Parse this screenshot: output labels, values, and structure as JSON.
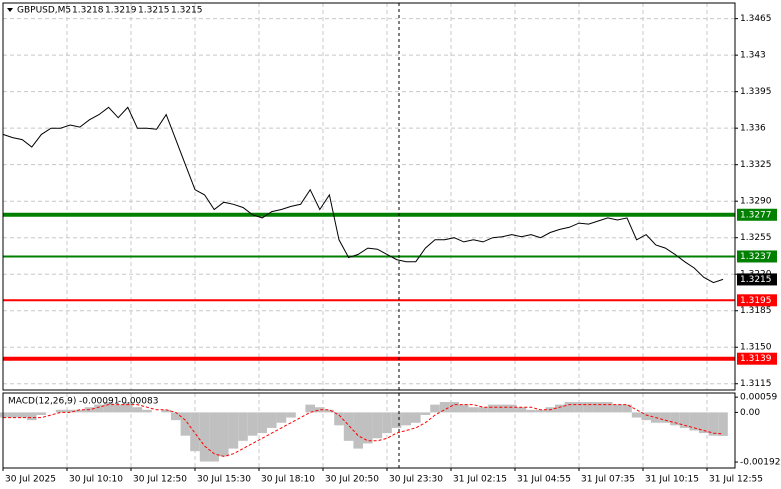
{
  "chart_data": {
    "type": "line",
    "title": "GBPUSD,M5",
    "quote": [
      1.3218,
      1.3219,
      1.3215,
      1.3215
    ],
    "color": "#000000",
    "values": [
      1.3354,
      1.3351,
      1.3349,
      1.3342,
      1.3354,
      1.336,
      1.336,
      1.3363,
      1.3361,
      1.3368,
      1.3373,
      1.338,
      1.337,
      1.338,
      1.336,
      1.336,
      1.3359,
      1.3373,
      1.3349,
      1.3325,
      1.3301,
      1.3296,
      1.3282,
      1.3289,
      1.3287,
      1.3284,
      1.3277,
      1.3274,
      1.328,
      1.3282,
      1.3285,
      1.3287,
      1.3301,
      1.3282,
      1.3296,
      1.3253,
      1.3236,
      1.3239,
      1.3245,
      1.3244,
      1.3239,
      1.3234,
      1.3232,
      1.3232,
      1.3245,
      1.3253,
      1.3253,
      1.3255,
      1.3251,
      1.3253,
      1.3251,
      1.3255,
      1.3256,
      1.3258,
      1.3256,
      1.3258,
      1.3255,
      1.326,
      1.3263,
      1.3265,
      1.3269,
      1.3268,
      1.3271,
      1.3274,
      1.3272,
      1.3274,
      1.3253,
      1.3258,
      1.3248,
      1.3245,
      1.3239,
      1.3232,
      1.3226,
      1.3217,
      1.3212,
      1.3215
    ],
    "xlabels": [
      "30 Jul 2025",
      "30 Jul 10:10",
      "30 Jul 12:50",
      "30 Jul 15:30",
      "30 Jul 18:10",
      "30 Jul 20:50",
      "30 Jul 23:30",
      "31 Jul 02:15",
      "31 Jul 04:55",
      "31 Jul 07:35",
      "31 Jul 10:15",
      "31 Jul 12:55"
    ],
    "ylim": [
      1.3109,
      1.348
    ],
    "yticks": [
      1.3465,
      1.343,
      1.3395,
      1.336,
      1.3325,
      {
        "value": 1.329,
        "label": "1.3290"
      },
      1.3255,
      {
        "value": 1.322,
        "label": "1.3220"
      },
      1.3185,
      {
        "value": 1.315,
        "label": "1.3150"
      },
      1.3115
    ],
    "grid": true,
    "levels": [
      {
        "value": 1.3277,
        "color": "#008000",
        "width": 4
      },
      {
        "value": 1.3237,
        "color": "#008000",
        "width": 2
      },
      {
        "value": 1.3195,
        "color": "#ff0000",
        "width": 2
      },
      {
        "value": 1.3139,
        "color": "#ff0000",
        "width": 4
      }
    ],
    "last_price": 1.3215,
    "macd": {
      "label": "MACD(12,26,9)",
      "macd_value": -0.00091,
      "signal_value": -0.00083,
      "hist_color": "#c0c0c0",
      "signal_color": "#ff0000",
      "histogram": [
        -0.0002,
        -0.0002,
        -0.0002,
        -0.0003,
        -0.0001,
        0.0,
        0.0001,
        0.0001,
        0.0001,
        0.0002,
        0.0003,
        0.0004,
        0.0003,
        0.0004,
        0.0002,
        0.0001,
        0.0,
        0.0001,
        -0.0003,
        -0.0009,
        -0.0015,
        -0.0019,
        -0.0019,
        -0.0017,
        -0.0014,
        -0.0011,
        -0.0009,
        -0.0008,
        -0.0006,
        -0.0004,
        -0.0002,
        0.0,
        0.0003,
        0.0002,
        0.0001,
        -0.0005,
        -0.0011,
        -0.0014,
        -0.0012,
        -0.001,
        -0.0008,
        -0.0006,
        -0.0005,
        -0.0004,
        -0.0001,
        0.0003,
        0.0004,
        0.0004,
        0.0003,
        0.0002,
        0.0002,
        0.0003,
        0.0003,
        0.0003,
        0.0002,
        0.0001,
        0.0001,
        0.0002,
        0.0003,
        0.0004,
        0.0004,
        0.0004,
        0.0004,
        0.0004,
        0.0003,
        0.0003,
        -0.0002,
        -0.0003,
        -0.0004,
        -0.0004,
        -0.0005,
        -0.0006,
        -0.0007,
        -0.0008,
        -0.0009,
        -0.00091
      ],
      "signal": [
        -0.0002,
        -0.0002,
        -0.0002,
        -0.0002,
        -0.0002,
        -0.0001,
        0.0,
        0.0,
        0.0001,
        0.0001,
        0.0002,
        0.0003,
        0.0003,
        0.0003,
        0.0003,
        0.0002,
        0.0001,
        0.0001,
        0.0,
        -0.0003,
        -0.0008,
        -0.0013,
        -0.0016,
        -0.0017,
        -0.0016,
        -0.0014,
        -0.0012,
        -0.001,
        -0.0008,
        -0.0006,
        -0.0004,
        -0.0002,
        0.0,
        0.0001,
        0.0001,
        -0.0001,
        -0.0005,
        -0.0009,
        -0.0011,
        -0.0011,
        -0.001,
        -0.0008,
        -0.0007,
        -0.0006,
        -0.0004,
        -0.0001,
        0.0001,
        0.0003,
        0.0003,
        0.0003,
        0.0002,
        0.0002,
        0.0002,
        0.0002,
        0.0002,
        0.0002,
        0.0001,
        0.0001,
        0.0002,
        0.0003,
        0.0003,
        0.0003,
        0.0003,
        0.0003,
        0.0003,
        0.0003,
        0.0001,
        -0.0001,
        -0.0002,
        -0.0003,
        -0.0004,
        -0.0005,
        -0.0006,
        -0.0007,
        -0.0008,
        -0.00083
      ],
      "ylim": [
        -0.00215,
        0.00075
      ],
      "yticks": [
        0.00059,
        {
          "value": 0,
          "label": "0.00"
        },
        -0.00192
      ]
    }
  }
}
